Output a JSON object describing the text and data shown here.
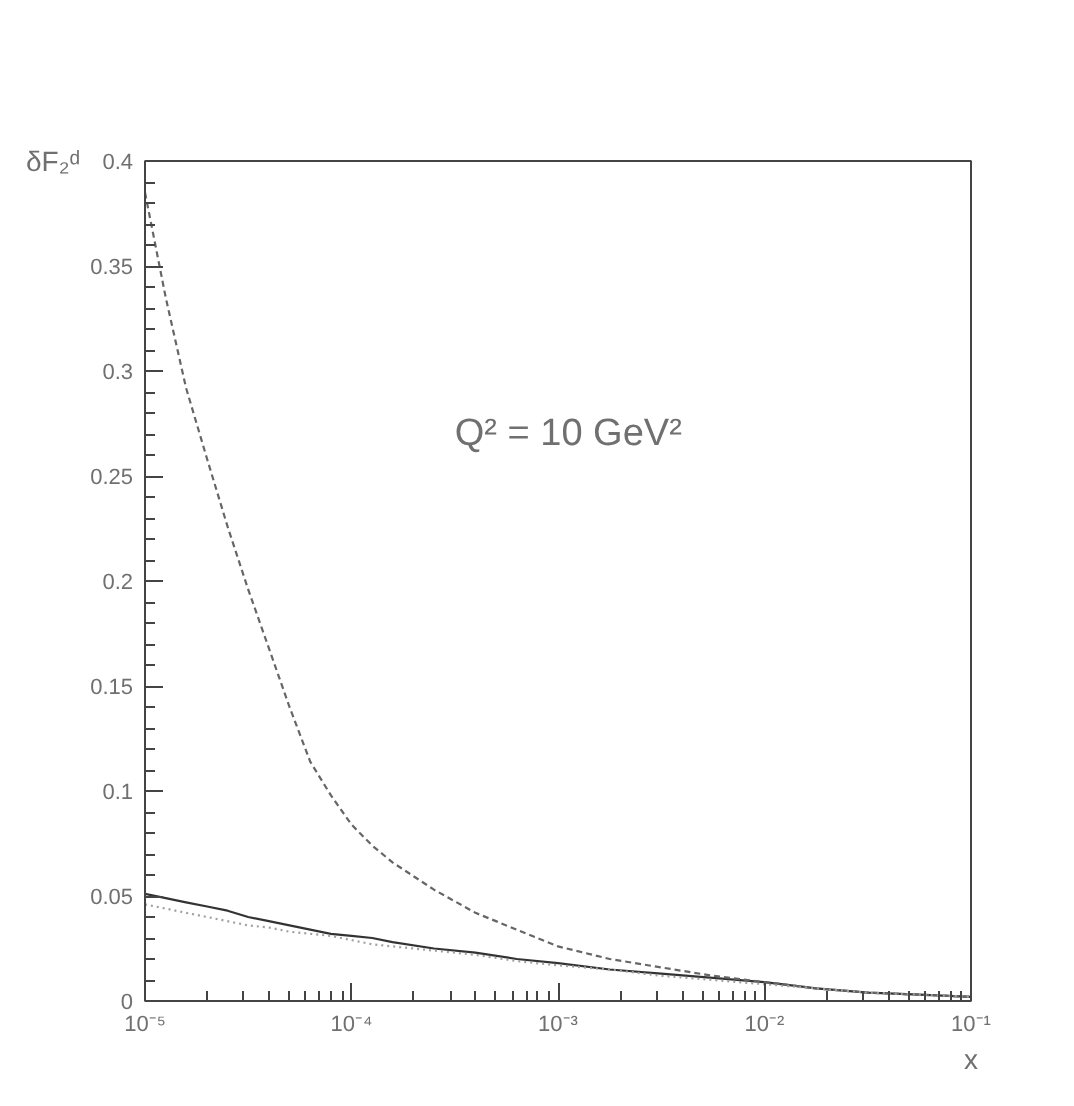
{
  "chart_data": {
    "type": "line",
    "xlabel": "x",
    "ylabel": "δF₂ᵈ",
    "annotations": [
      "Q² = 10 GeV²"
    ],
    "log": "x",
    "grid": false,
    "marker": "none",
    "xlim": [
      1e-05,
      0.1
    ],
    "ylim": [
      0,
      0.4
    ],
    "xticks": [
      {
        "value": 1e-05,
        "label": "10⁻⁵"
      },
      {
        "value": 0.0001,
        "label": "10⁻⁴"
      },
      {
        "value": 0.001,
        "label": "10⁻³"
      },
      {
        "value": 0.01,
        "label": "10⁻²"
      },
      {
        "value": 0.1,
        "label": "10⁻¹"
      }
    ],
    "yticks": [
      0,
      0.05,
      0.1,
      0.15,
      0.2,
      0.25,
      0.3,
      0.35,
      0.4
    ],
    "x": [
      1e-05,
      1.26e-05,
      1.58e-05,
      2e-05,
      2.51e-05,
      3.16e-05,
      3.98e-05,
      5.01e-05,
      6.31e-05,
      7.94e-05,
      0.0001,
      0.000126,
      0.000158,
      0.000251,
      0.000398,
      0.000631,
      0.001,
      0.00178,
      0.00316,
      0.00562,
      0.01,
      0.0178,
      0.0316,
      0.0562,
      0.1
    ],
    "series": [
      {
        "color": "#333333",
        "line_style": "solid",
        "values": [
          0.051,
          0.049,
          0.047,
          0.045,
          0.043,
          0.04,
          0.038,
          0.036,
          0.034,
          0.032,
          0.031,
          0.03,
          0.028,
          0.025,
          0.023,
          0.02,
          0.018,
          0.015,
          0.013,
          0.011,
          0.009,
          0.006,
          0.004,
          0.003,
          0.002
        ]
      },
      {
        "color": "#666666",
        "line_style": "dashed",
        "values": [
          0.385,
          0.335,
          0.292,
          0.258,
          0.226,
          0.196,
          0.168,
          0.14,
          0.114,
          0.098,
          0.084,
          0.074,
          0.066,
          0.053,
          0.042,
          0.034,
          0.026,
          0.02,
          0.016,
          0.012,
          0.009,
          0.006,
          0.004,
          0.003,
          0.002
        ]
      },
      {
        "color": "#a0a0a0",
        "line_style": "dotted",
        "values": [
          0.046,
          0.044,
          0.042,
          0.04,
          0.038,
          0.036,
          0.035,
          0.033,
          0.032,
          0.031,
          0.029,
          0.027,
          0.026,
          0.024,
          0.022,
          0.019,
          0.017,
          0.015,
          0.012,
          0.01,
          0.008,
          0.006,
          0.004,
          0.003,
          0.002
        ]
      }
    ]
  }
}
